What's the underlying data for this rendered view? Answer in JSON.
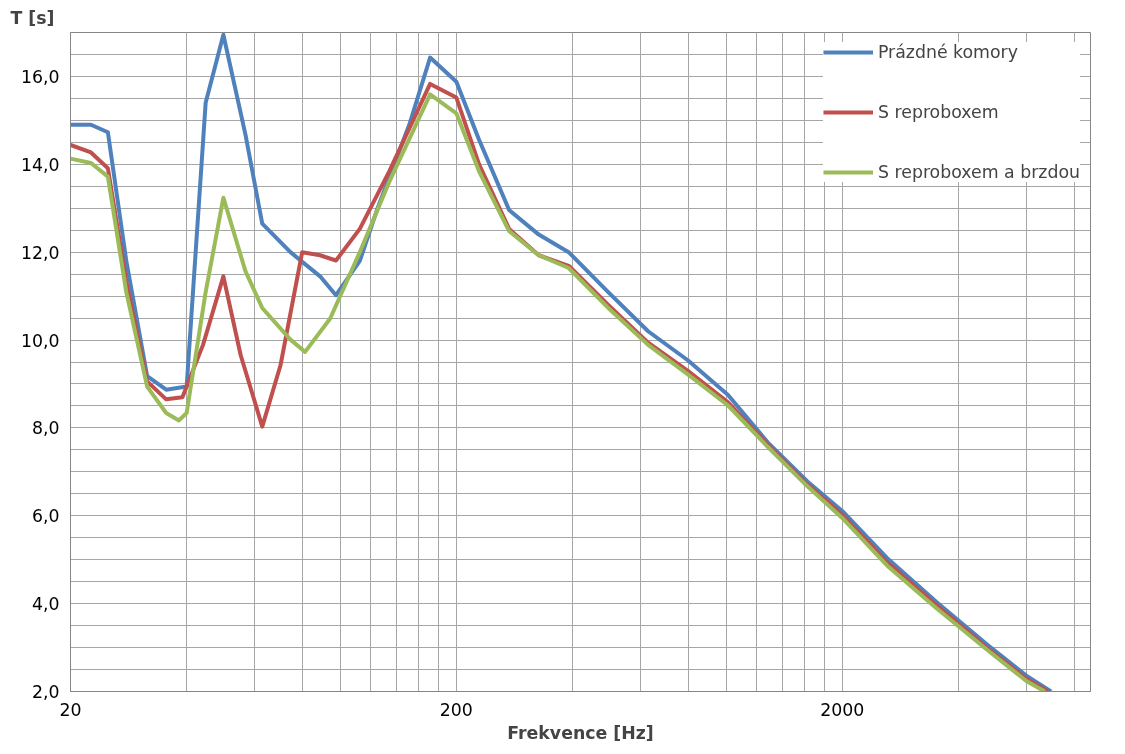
{
  "chart_data": {
    "type": "line",
    "xlabel": "Frekvence [Hz]",
    "ylabel": "T [s]",
    "log": "x",
    "grid": true,
    "legend": "top right",
    "line_style": "solid",
    "marker": "none",
    "xlim": [
      20,
      8800
    ],
    "xticks": [
      20,
      {
        "value": 40,
        "label": null
      },
      {
        "value": 60,
        "label": null
      },
      {
        "value": 80,
        "label": null
      },
      {
        "value": 100,
        "label": null
      },
      {
        "value": 120,
        "label": null
      },
      {
        "value": 140,
        "label": null
      },
      {
        "value": 160,
        "label": null
      },
      {
        "value": 180,
        "label": null
      },
      200,
      {
        "value": 400,
        "label": null
      },
      {
        "value": 600,
        "label": null
      },
      {
        "value": 800,
        "label": null
      },
      {
        "value": 1000,
        "label": null
      },
      {
        "value": 1200,
        "label": null
      },
      {
        "value": 1400,
        "label": null
      },
      {
        "value": 1600,
        "label": null
      },
      {
        "value": 1800,
        "label": null
      },
      2000,
      {
        "value": 4000,
        "label": null
      },
      {
        "value": 6000,
        "label": null
      },
      {
        "value": 8000,
        "label": null
      }
    ],
    "ylim": [
      2,
      17
    ],
    "yticks": [
      {
        "value": 2,
        "label": "2,0"
      },
      {
        "value": 2.5,
        "label": null
      },
      {
        "value": 3,
        "label": null
      },
      {
        "value": 3.5,
        "label": null
      },
      {
        "value": 4,
        "label": "4,0"
      },
      {
        "value": 4.5,
        "label": null
      },
      {
        "value": 5,
        "label": null
      },
      {
        "value": 5.5,
        "label": null
      },
      {
        "value": 6,
        "label": "6,0"
      },
      {
        "value": 6.5,
        "label": null
      },
      {
        "value": 7,
        "label": null
      },
      {
        "value": 7.5,
        "label": null
      },
      {
        "value": 8,
        "label": "8,0"
      },
      {
        "value": 8.5,
        "label": null
      },
      {
        "value": 9,
        "label": null
      },
      {
        "value": 9.5,
        "label": null
      },
      {
        "value": 10,
        "label": "10,0"
      },
      {
        "value": 10.5,
        "label": null
      },
      {
        "value": 11,
        "label": null
      },
      {
        "value": 11.5,
        "label": null
      },
      {
        "value": 12,
        "label": "12,0"
      },
      {
        "value": 12.5,
        "label": null
      },
      {
        "value": 13,
        "label": null
      },
      {
        "value": 13.5,
        "label": null
      },
      {
        "value": 14,
        "label": "14,0"
      },
      {
        "value": 14.5,
        "label": null
      },
      {
        "value": 15,
        "label": null
      },
      {
        "value": 15.5,
        "label": null
      },
      {
        "value": 16,
        "label": "16,0"
      },
      {
        "value": 16.5,
        "label": null
      }
    ],
    "series": [
      {
        "name": "Prázdné komory",
        "color": "#4f81bd",
        "x": [
          20,
          22.6,
          25,
          27.9,
          31.6,
          35.4,
          40,
          44.8,
          49.8,
          56.8,
          62.8,
          74.3,
          88.7,
          97.5,
          112.4,
          125,
          151,
          171,
          200,
          229,
          274,
          327,
          391,
          495,
          628,
          796,
          1012,
          1282,
          1625,
          2000,
          2612,
          3516,
          4730,
          6000,
          6952
        ],
        "values": [
          14.9,
          14.9,
          14.73,
          11.8,
          9.18,
          8.87,
          8.94,
          15.4,
          16.95,
          14.68,
          12.65,
          12.0,
          11.45,
          11.02,
          11.8,
          13.0,
          14.9,
          16.43,
          15.88,
          14.56,
          12.96,
          12.4,
          12.0,
          11.09,
          10.2,
          9.54,
          8.75,
          7.67,
          6.78,
          6.11,
          5.04,
          4.03,
          3.08,
          2.36,
          2.0
        ]
      },
      {
        "name": "S reproboxem",
        "color": "#c0504d",
        "x": [
          20,
          22.6,
          25,
          27.9,
          31.6,
          35.4,
          39,
          44.1,
          49.8,
          55.2,
          62.8,
          70,
          79.7,
          88.7,
          97.5,
          112.4,
          134,
          171,
          200,
          229,
          274,
          327,
          391,
          495,
          628,
          796,
          1012,
          1282,
          1625,
          2000,
          2612,
          3516,
          4730,
          6000,
          6824
        ],
        "values": [
          14.44,
          14.27,
          13.91,
          11.33,
          9.06,
          8.65,
          8.7,
          9.89,
          11.45,
          9.66,
          8.03,
          9.42,
          12.0,
          11.93,
          11.81,
          12.53,
          13.84,
          15.83,
          15.52,
          14.0,
          12.53,
          11.93,
          11.69,
          10.8,
          9.94,
          9.3,
          8.58,
          7.62,
          6.71,
          6.02,
          4.94,
          3.96,
          3.0,
          2.29,
          2.0
        ]
      },
      {
        "name": "S reproboxem a brzdou",
        "color": "#9bbb59",
        "x": [
          20,
          22.6,
          25,
          27.9,
          31.6,
          35.4,
          38.2,
          40,
          44.8,
          49.8,
          56.8,
          62.8,
          74.3,
          81.1,
          94.2,
          112.4,
          134,
          171,
          200,
          229,
          274,
          327,
          391,
          495,
          628,
          796,
          1012,
          1282,
          1625,
          2000,
          2612,
          3516,
          4730,
          6000,
          6700
        ],
        "values": [
          14.13,
          14.03,
          13.72,
          11.09,
          8.94,
          8.34,
          8.17,
          8.34,
          11.09,
          13.24,
          11.57,
          10.73,
          10.01,
          9.73,
          10.49,
          12.0,
          13.6,
          15.59,
          15.16,
          13.84,
          12.48,
          11.93,
          11.64,
          10.73,
          9.89,
          9.22,
          8.51,
          7.57,
          6.67,
          5.95,
          4.87,
          3.89,
          2.96,
          2.24,
          2.0
        ]
      }
    ]
  }
}
